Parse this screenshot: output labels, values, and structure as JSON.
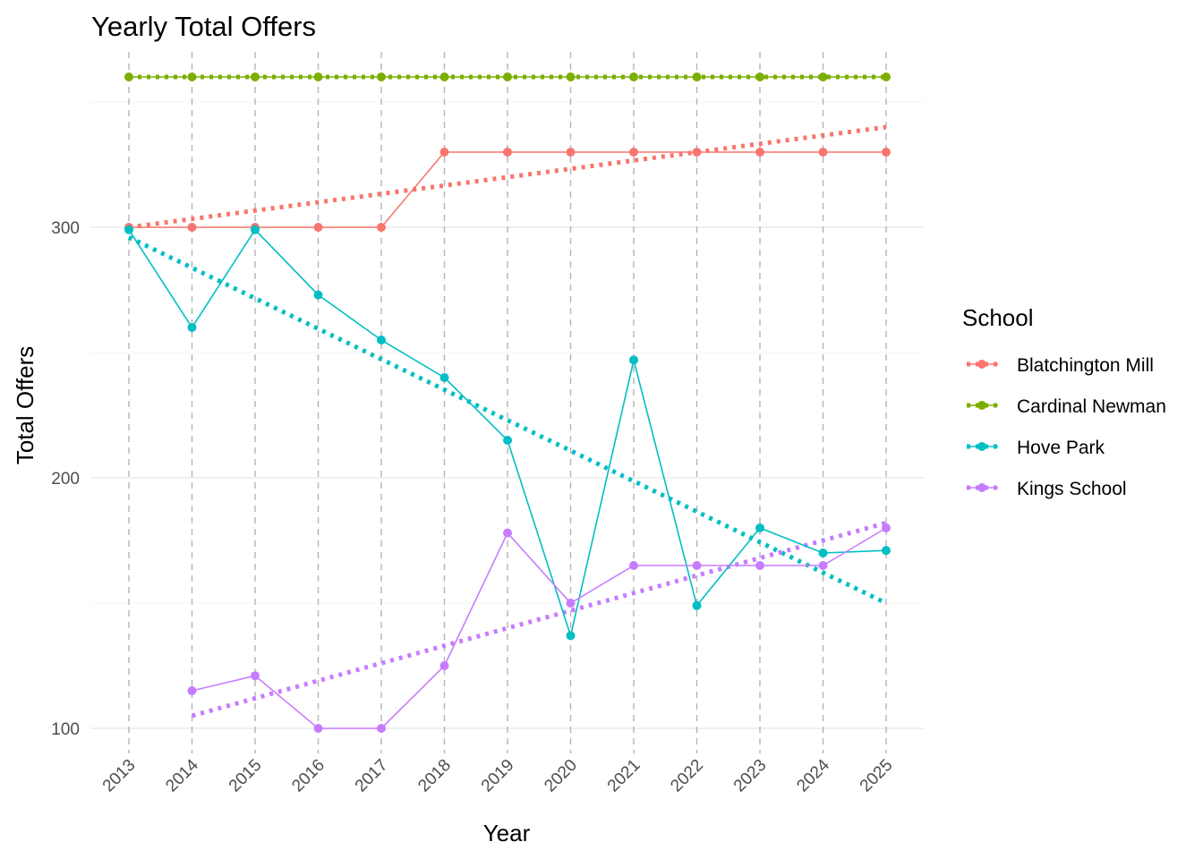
{
  "chart_data": {
    "type": "line",
    "title": "Yearly Total Offers",
    "xlabel": "Year",
    "ylabel": "Total Offers",
    "categories": [
      "2013",
      "2014",
      "2015",
      "2016",
      "2017",
      "2018",
      "2019",
      "2020",
      "2021",
      "2022",
      "2023",
      "2024",
      "2025"
    ],
    "y_ticks": [
      "100",
      "200",
      "300"
    ],
    "ylim": [
      90,
      370
    ],
    "grid": true,
    "vertical_dashed_lines_at_years": true,
    "legend": {
      "title": "School",
      "position": "right"
    },
    "series": [
      {
        "name": "Blatchington Mill",
        "color": "#F8766D",
        "values": [
          300,
          300,
          300,
          300,
          300,
          330,
          330,
          330,
          330,
          330,
          330,
          330,
          330
        ],
        "trend": [
          300,
          340
        ]
      },
      {
        "name": "Cardinal Newman",
        "color": "#7CAE00",
        "values": [
          360,
          360,
          360,
          360,
          360,
          360,
          360,
          360,
          360,
          360,
          360,
          360,
          360
        ],
        "trend": [
          360,
          360
        ]
      },
      {
        "name": "Hove Park",
        "color": "#00BFC4",
        "values": [
          299,
          260,
          299,
          273,
          255,
          240,
          215,
          137,
          247,
          149,
          180,
          170,
          171
        ],
        "trend": [
          296,
          150
        ]
      },
      {
        "name": "Kings School",
        "color": "#C77CFF",
        "values": [
          null,
          115,
          121,
          100,
          100,
          125,
          178,
          150,
          165,
          165,
          165,
          165,
          180
        ],
        "trend": [
          105,
          182
        ]
      }
    ]
  }
}
